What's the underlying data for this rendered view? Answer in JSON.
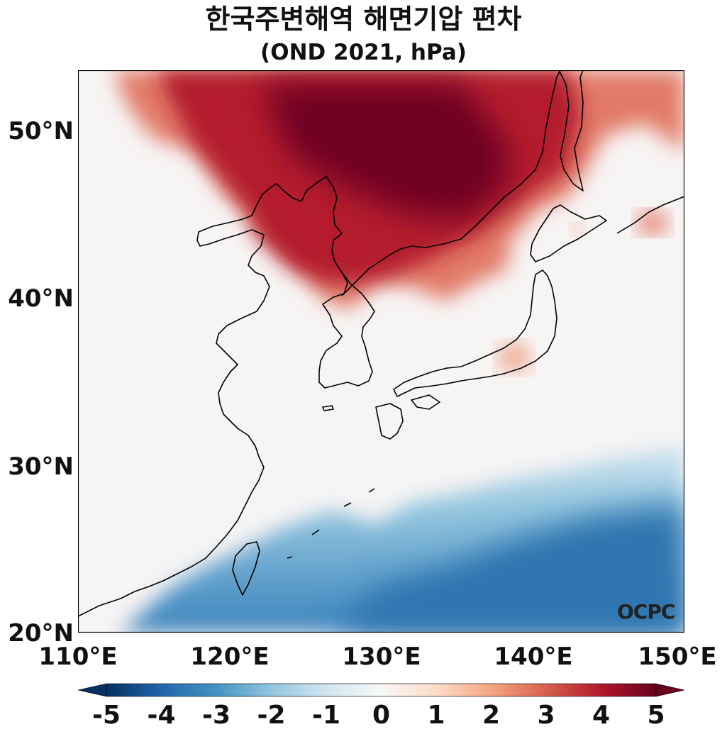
{
  "title": {
    "line1": "한국주변해역 해면기압 편차",
    "line2": "(OND 2021, hPa)"
  },
  "latitude_labels": [
    "50°N",
    "40°N",
    "30°N",
    "20°N"
  ],
  "longitude_labels": [
    "110°E",
    "120°E",
    "130°E",
    "140°E",
    "150°E"
  ],
  "colorbar": {
    "ticks": [
      "-5",
      "-4",
      "-3",
      "-2",
      "-1",
      "0",
      "1",
      "2",
      "3",
      "4",
      "5"
    ],
    "min": -5,
    "max": 5,
    "colors": [
      "#053061",
      "#2166ac",
      "#4393c3",
      "#92c5de",
      "#d1e5f0",
      "#f7f7f7",
      "#fddbc7",
      "#f4a582",
      "#d6604d",
      "#b2182b",
      "#67001f"
    ]
  },
  "map": {
    "extent": {
      "lon": [
        110,
        150
      ],
      "lat": [
        20,
        53.5
      ]
    },
    "land_outline_color": "#000000"
  },
  "watermark": "OCPC"
}
